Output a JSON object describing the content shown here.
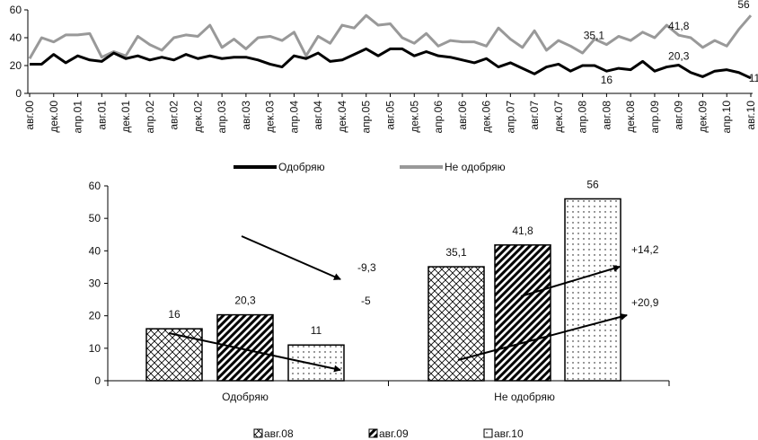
{
  "chart_data": [
    {
      "type": "line",
      "ylim": [
        0,
        60
      ],
      "yticks": [
        0,
        20,
        40,
        60
      ],
      "xticklabels": [
        "авг.00",
        "дек.00",
        "апр.01",
        "авг.01",
        "дек.01",
        "апр.02",
        "авг.02",
        "дек.02",
        "апр.03",
        "авг.03",
        "дек.03",
        "апр.04",
        "авг.04",
        "дек.04",
        "апр.05",
        "авг.05",
        "дек.05",
        "апр.06",
        "авг.06",
        "дек.06",
        "апр.07",
        "авг.07",
        "дек.07",
        "апр.08",
        "авг.08",
        "дек.08",
        "апр.09",
        "авг.09",
        "дек.09",
        "апр.10",
        "авг.10"
      ],
      "series": [
        {
          "name": "Одобряю",
          "color": "#000000",
          "values": [
            21,
            21,
            28,
            22,
            27,
            24,
            23,
            29,
            25,
            27,
            24,
            26,
            24,
            28,
            25,
            27,
            25,
            26,
            26,
            24,
            21,
            19,
            27,
            25,
            29,
            23,
            24,
            28,
            32,
            27,
            32,
            32,
            27,
            30,
            27,
            26,
            24,
            22,
            25,
            19,
            22,
            18,
            14,
            19,
            21,
            16,
            20,
            20,
            16,
            18,
            17,
            23,
            16,
            19,
            20.3,
            15,
            12,
            16,
            17,
            15,
            11
          ]
        },
        {
          "name": "Не одобряю",
          "color": "#999999",
          "values": [
            25,
            40,
            37,
            42,
            42,
            43,
            26,
            30,
            27,
            41,
            35,
            31,
            40,
            42,
            41,
            49,
            33,
            39,
            32,
            40,
            41,
            38,
            44,
            27,
            41,
            36,
            49,
            47,
            56,
            49,
            50,
            40,
            36,
            43,
            34,
            38,
            37,
            37,
            34,
            47,
            39,
            33,
            45,
            31,
            38,
            34,
            29,
            39,
            35.1,
            41,
            38,
            44,
            40,
            49,
            41.8,
            40,
            33,
            38,
            34,
            46,
            56
          ]
        }
      ],
      "annotations": [
        {
          "series": 0,
          "index": 48,
          "text": "16"
        },
        {
          "series": 0,
          "index": 54,
          "text": "20,3"
        },
        {
          "series": 0,
          "index": 60,
          "text": "11"
        },
        {
          "series": 1,
          "index": 48,
          "text": "35,1"
        },
        {
          "series": 1,
          "index": 54,
          "text": "41,8"
        },
        {
          "series": 1,
          "index": 60,
          "text": "56"
        }
      ]
    },
    {
      "type": "bar",
      "ylim": [
        0,
        60
      ],
      "yticks": [
        0,
        10,
        20,
        30,
        40,
        50,
        60
      ],
      "categories": [
        "Одобряю",
        "Не одобряю"
      ],
      "series": [
        {
          "name": "авг.08",
          "values": [
            16,
            35.1
          ],
          "labels": [
            "16",
            "35,1"
          ]
        },
        {
          "name": "авг.09",
          "values": [
            20.3,
            41.8
          ],
          "labels": [
            "20,3",
            "41,8"
          ]
        },
        {
          "name": "авг.10",
          "values": [
            11,
            56
          ],
          "labels": [
            "11",
            "56"
          ]
        }
      ],
      "changes": [
        {
          "category": 0,
          "from": "авг.09",
          "text": "-9,3"
        },
        {
          "category": 0,
          "from": "авг.08",
          "text": "-5"
        },
        {
          "category": 1,
          "from": "авг.09",
          "text": "+14,2"
        },
        {
          "category": 1,
          "from": "авг.08",
          "text": "+20,9"
        }
      ]
    }
  ]
}
